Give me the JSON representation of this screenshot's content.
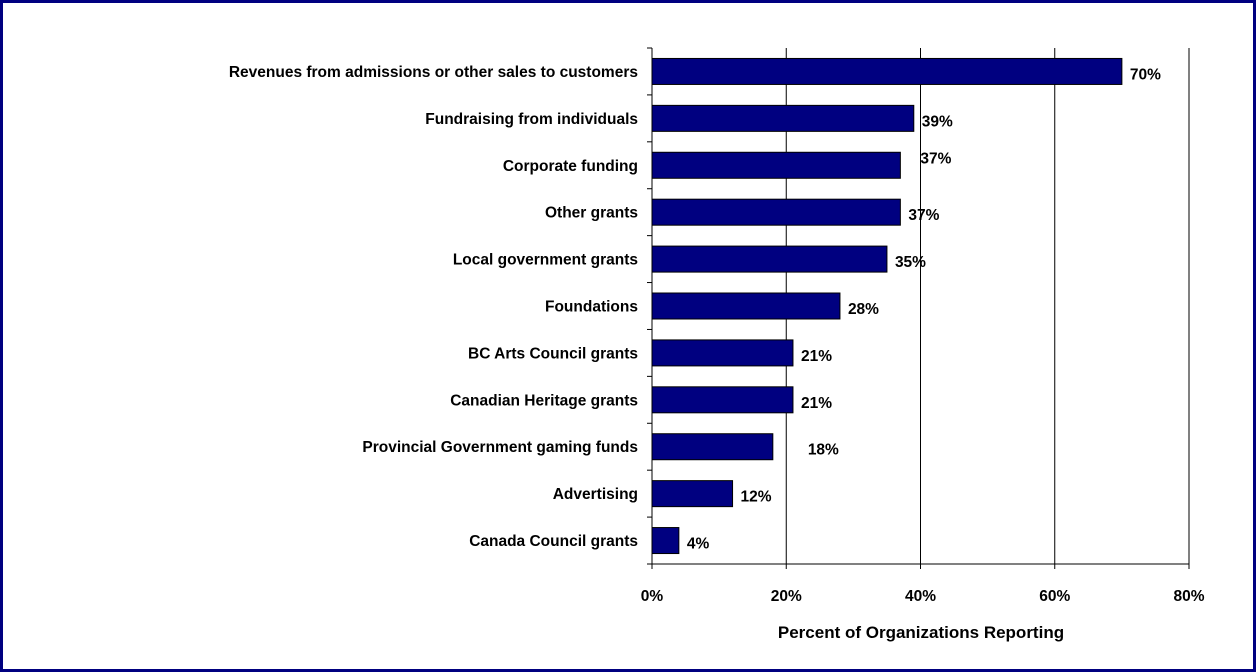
{
  "chart_data": {
    "type": "bar",
    "orientation": "horizontal",
    "categories": [
      "Revenues from admissions or other sales to customers",
      "Fundraising from individuals",
      "Corporate funding",
      "Other grants",
      "Local government grants",
      "Foundations",
      "BC Arts Council grants",
      "Canadian Heritage grants",
      "Provincial Government gaming funds",
      "Advertising",
      "Canada Council grants"
    ],
    "values": [
      70,
      39,
      37,
      37,
      35,
      28,
      21,
      21,
      18,
      12,
      4
    ],
    "value_labels": [
      "70%",
      "39%",
      "37%",
      "37%",
      "35%",
      "28%",
      "21%",
      "21%",
      "18%",
      "12%",
      "4%"
    ],
    "xlabel": "Percent of Organizations Reporting",
    "ylabel": "",
    "xlim": [
      0,
      80
    ],
    "x_ticks": [
      0,
      20,
      40,
      60,
      80
    ],
    "x_tick_labels": [
      "0%",
      "20%",
      "40%",
      "60%",
      "80%"
    ],
    "grid": "vertical",
    "bar_color": "#000080",
    "frame_color": "#000080"
  }
}
